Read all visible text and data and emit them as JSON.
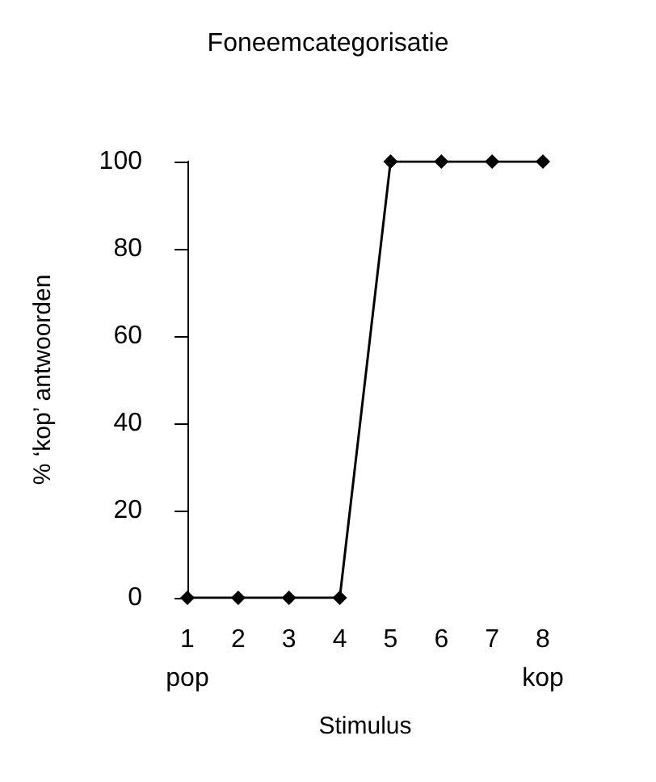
{
  "chart_data": {
    "type": "line",
    "title": "Foneemcategorisatie",
    "xlabel": "Stimulus",
    "ylabel": "% ‘kop’ antwoorden",
    "categories": [
      "1",
      "2",
      "3",
      "4",
      "5",
      "6",
      "7",
      "8"
    ],
    "series": [
      {
        "color": "#000000",
        "values": [
          0,
          0,
          0,
          0,
          100,
          100,
          100,
          100
        ]
      }
    ],
    "ylim": [
      0,
      100
    ],
    "yticks": [
      0,
      20,
      40,
      60,
      80,
      100
    ],
    "grid": false,
    "marker": "diamond",
    "line_style": "solid",
    "annotations": [
      "pop",
      "kop"
    ]
  }
}
